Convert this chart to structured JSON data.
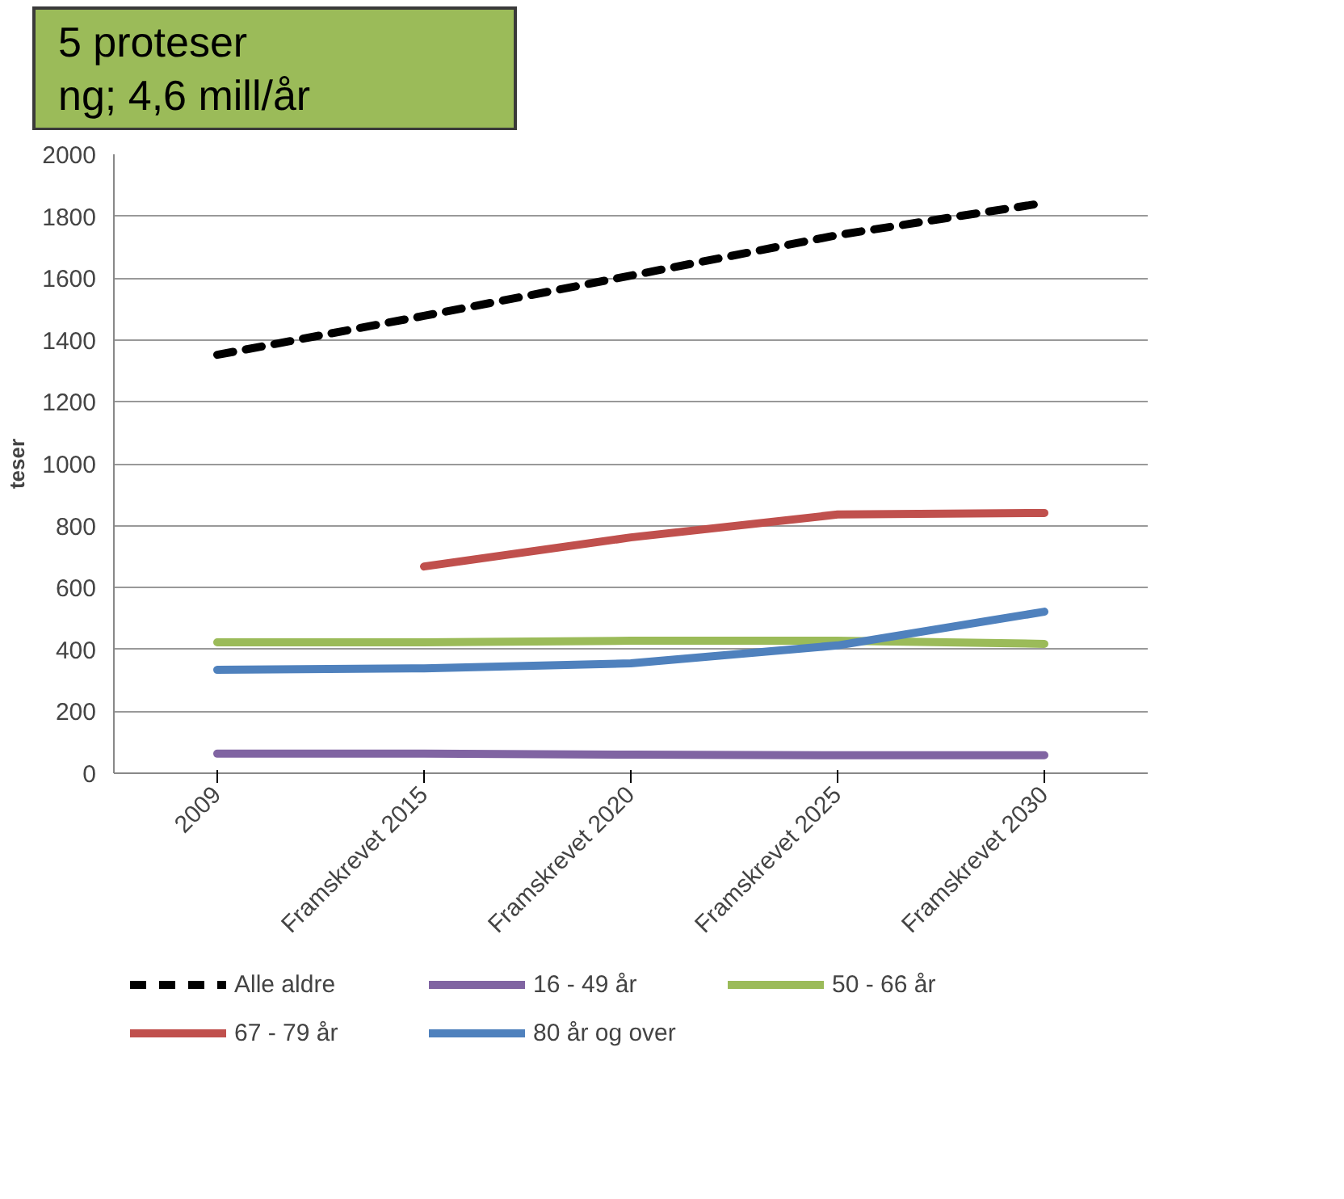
{
  "chart_data": {
    "type": "line",
    "ylabel": "teser",
    "categories": [
      "2009",
      "Framskrevet 2015",
      "Framskrevet 2020",
      "Framskrevet 2025",
      "Framskrevet 2030"
    ],
    "series": [
      {
        "name": "Alle aldre",
        "color": "#000000",
        "line_style": "dashed",
        "values": [
          1352,
          1478,
          1608,
          1739,
          1843
        ]
      },
      {
        "name": "16 - 49 år",
        "color": "#8064a2",
        "values": [
          63,
          63,
          60,
          58,
          58
        ]
      },
      {
        "name": "50 - 66 år",
        "color": "#9bbb59",
        "values": [
          423,
          423,
          428,
          428,
          418
        ]
      },
      {
        "name": "67 - 79 år",
        "color": "#c0504d",
        "values": [
          null,
          668,
          762,
          836,
          841
        ]
      },
      {
        "name": "80 år og over",
        "color": "#4f81bd",
        "values": [
          334,
          339,
          355,
          413,
          522
        ]
      }
    ],
    "ylim": [
      0,
      2000
    ],
    "yticks": [
      0,
      200,
      400,
      600,
      800,
      1000,
      1200,
      1400,
      1600,
      1800,
      2000
    ],
    "grid": "y",
    "legend": "bottom",
    "marker": "none",
    "line_style": "solid",
    "annotations": [
      "5 proteser",
      "ng; 4,6 mill/år"
    ]
  }
}
